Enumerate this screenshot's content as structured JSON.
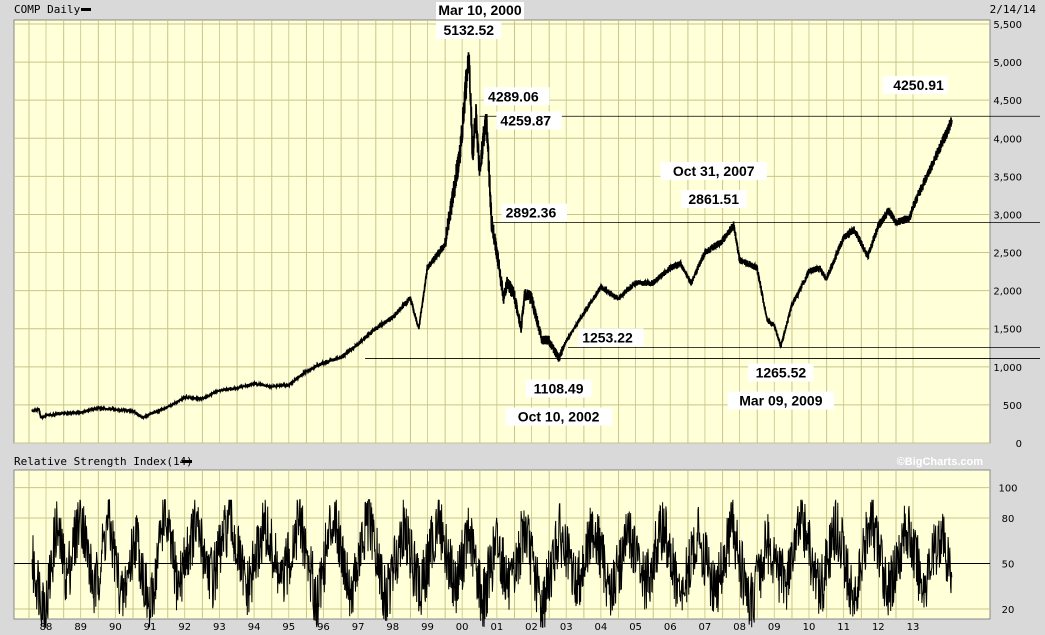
{
  "header": {
    "symbol_label": "COMP Daily",
    "peak_date": "Mar 10, 2000",
    "chart_date": "2/14/14"
  },
  "rsi_panel": {
    "title": "Relative Strength Index(14)",
    "watermark": "©BigCharts.com"
  },
  "colors": {
    "background": "#d9d9d9",
    "plot_fill": "#ffffd8",
    "grid": "#c8c48a",
    "line": "#000000"
  },
  "chart_data": [
    {
      "type": "line",
      "title": "COMP Daily",
      "ylim": [
        0,
        5500
      ],
      "y_ticks": [
        "0",
        "500",
        "1,000",
        "1,500",
        "2,000",
        "2,500",
        "3,000",
        "3,500",
        "4,000",
        "4,500",
        "5,000",
        "5,500"
      ],
      "x_ticks": [
        "88",
        "89",
        "90",
        "91",
        "92",
        "93",
        "94",
        "95",
        "96",
        "97",
        "98",
        "99",
        "00",
        "01",
        "02",
        "03",
        "04",
        "05",
        "06",
        "07",
        "08",
        "09",
        "10",
        "11",
        "12",
        "13"
      ],
      "grid": true,
      "series": [
        {
          "x": [
            1987.6,
            1987.8,
            1987.85,
            1987.95,
            1988.0,
            1988.5,
            1989.0,
            1989.5,
            1990.0,
            1990.5,
            1990.8,
            1991.0,
            1991.5,
            1992.0,
            1992.5,
            1993.0,
            1993.5,
            1994.0,
            1994.5,
            1995.0,
            1995.5,
            1996.0,
            1996.5,
            1997.0,
            1997.5,
            1998.0,
            1998.5,
            1998.75,
            1999.0,
            1999.5,
            1999.9,
            2000.0,
            2000.19,
            2000.3,
            2000.4,
            2000.5,
            2000.7,
            2000.85,
            2001.0,
            2001.2,
            2001.3,
            2001.5,
            2001.7,
            2001.8,
            2002.0,
            2002.3,
            2002.5,
            2002.78,
            2003.0,
            2003.5,
            2004.0,
            2004.5,
            2005.0,
            2005.5,
            2006.0,
            2006.3,
            2006.6,
            2007.0,
            2007.5,
            2007.83,
            2008.0,
            2008.5,
            2008.8,
            2009.0,
            2009.19,
            2009.5,
            2010.0,
            2010.3,
            2010.5,
            2011.0,
            2011.3,
            2011.7,
            2012.0,
            2012.3,
            2012.5,
            2012.9,
            2013.0,
            2013.5,
            2014.0,
            2014.12
          ],
          "values": [
            420,
            440,
            330,
            350,
            360,
            390,
            400,
            460,
            440,
            420,
            330,
            380,
            470,
            600,
            580,
            690,
            720,
            780,
            740,
            760,
            940,
            1050,
            1120,
            1300,
            1500,
            1650,
            1900,
            1500,
            2300,
            2600,
            3700,
            4100,
            5132.52,
            3800,
            4289.06,
            3600,
            4259.87,
            2892.36,
            2500,
            1900,
            2100,
            1950,
            1500,
            1950,
            1900,
            1350,
            1350,
            1108.49,
            1340,
            1700,
            2050,
            1900,
            2100,
            2100,
            2300,
            2350,
            2100,
            2500,
            2650,
            2861.51,
            2400,
            2300,
            1600,
            1550,
            1265.52,
            1800,
            2250,
            2300,
            2150,
            2700,
            2800,
            2450,
            2850,
            3050,
            2900,
            2950,
            3100,
            3600,
            4100,
            4250.91
          ]
        }
      ],
      "reference_lines": [
        {
          "y": 4289.06
        },
        {
          "y": 2892.36
        },
        {
          "y": 1253.22
        },
        {
          "y": 1108.49
        }
      ],
      "annotations": [
        {
          "text": "5132.52",
          "x": 2000.19,
          "y": 5132.52
        },
        {
          "text": "4289.06",
          "x": 2000.4,
          "y": 4289.06
        },
        {
          "text": "4259.87",
          "x": 2000.7,
          "y": 4259.87
        },
        {
          "text": "2892.36",
          "x": 2000.85,
          "y": 2892.36
        },
        {
          "text": "1253.22",
          "x": 2003.0,
          "y": 1253.22
        },
        {
          "text": "1108.49",
          "x": 2002.78,
          "y": 1108.49
        },
        {
          "text": "Oct 10, 2002",
          "x": 2002.78,
          "y": 1108.49
        },
        {
          "text": "Oct 31, 2007",
          "x": 2007.83,
          "y": 2861.51
        },
        {
          "text": "2861.51",
          "x": 2007.83,
          "y": 2861.51
        },
        {
          "text": "1265.52",
          "x": 2009.19,
          "y": 1265.52
        },
        {
          "text": "Mar 09, 2009",
          "x": 2009.19,
          "y": 1265.52
        },
        {
          "text": "4250.91",
          "x": 2014.12,
          "y": 4250.91
        }
      ]
    },
    {
      "type": "line",
      "title": "Relative Strength Index(14)",
      "ylim": [
        0,
        100
      ],
      "y_ticks": [
        "20",
        "50",
        "80",
        "100"
      ],
      "reference_line": 50,
      "series": [
        {
          "x": [
            1987.6,
            1988.0,
            1988.3,
            1988.6,
            1989.0,
            1989.4,
            1989.8,
            1990.2,
            1990.6,
            1991.0,
            1991.4,
            1991.8,
            1992.3,
            1992.8,
            1993.3,
            1993.8,
            1994.3,
            1994.8,
            1995.3,
            1995.8,
            1996.3,
            1996.8,
            1997.3,
            1997.8,
            1998.3,
            1998.8,
            1999.3,
            1999.8,
            2000.2,
            2000.6,
            2001.0,
            2001.4,
            2001.8,
            2002.3,
            2002.8,
            2003.3,
            2003.8,
            2004.3,
            2004.8,
            2005.3,
            2005.8,
            2006.3,
            2006.8,
            2007.3,
            2007.8,
            2008.3,
            2008.8,
            2009.3,
            2009.8,
            2010.3,
            2010.8,
            2011.3,
            2011.8,
            2012.3,
            2012.8,
            2013.3,
            2013.8,
            2014.12
          ],
          "values": [
            50,
            20,
            75,
            40,
            85,
            30,
            80,
            25,
            70,
            15,
            85,
            35,
            75,
            40,
            80,
            30,
            75,
            35,
            80,
            25,
            85,
            30,
            80,
            25,
            75,
            30,
            80,
            35,
            70,
            25,
            65,
            30,
            75,
            20,
            70,
            35,
            75,
            30,
            70,
            35,
            75,
            25,
            70,
            30,
            75,
            20,
            65,
            35,
            80,
            30,
            75,
            25,
            80,
            30,
            75,
            35,
            70,
            40
          ]
        }
      ]
    }
  ]
}
